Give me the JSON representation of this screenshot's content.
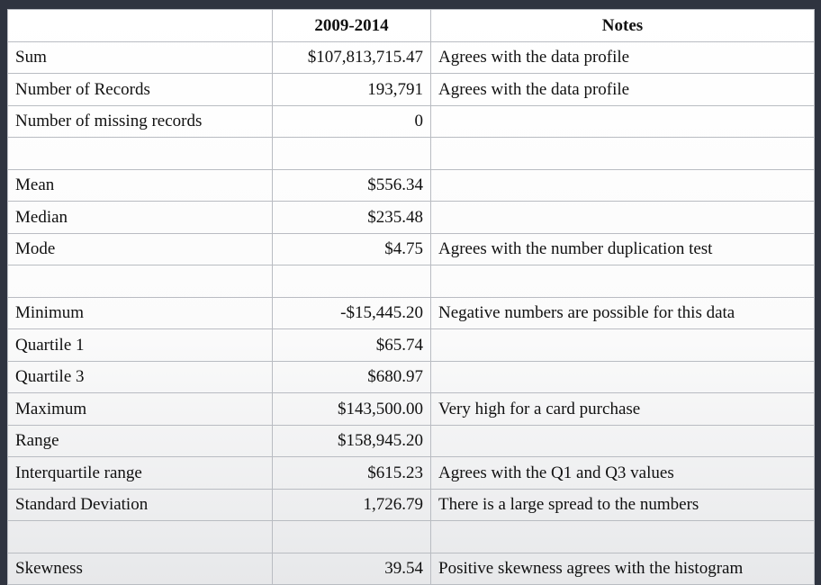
{
  "table": {
    "headers": [
      "",
      "2009-2014",
      "Notes"
    ],
    "rows": [
      {
        "label": "Sum",
        "value": "$107,813,715.47",
        "notes": "Agrees with the data profile"
      },
      {
        "label": "Number of Records",
        "value": "193,791",
        "notes": "Agrees with the data profile"
      },
      {
        "label": "Number of missing records",
        "value": "0",
        "notes": ""
      },
      {
        "label": "",
        "value": "",
        "notes": ""
      },
      {
        "label": "Mean",
        "value": "$556.34",
        "notes": ""
      },
      {
        "label": "Median",
        "value": "$235.48",
        "notes": ""
      },
      {
        "label": "Mode",
        "value": "$4.75",
        "notes": "Agrees with the number duplication test"
      },
      {
        "label": "",
        "value": "",
        "notes": ""
      },
      {
        "label": "Minimum",
        "value": "-$15,445.20",
        "notes": "Negative numbers are possible for this data"
      },
      {
        "label": "Quartile 1",
        "value": "$65.74",
        "notes": ""
      },
      {
        "label": "Quartile 3",
        "value": "$680.97",
        "notes": ""
      },
      {
        "label": "Maximum",
        "value": "$143,500.00",
        "notes": "Very high for a card purchase"
      },
      {
        "label": "Range",
        "value": "$158,945.20",
        "notes": ""
      },
      {
        "label": "Interquartile range",
        "value": "$615.23",
        "notes": "Agrees with the Q1 and Q3 values"
      },
      {
        "label": "Standard Deviation",
        "value": "1,726.79",
        "notes": "There is a large spread to the numbers"
      },
      {
        "label": "",
        "value": "",
        "notes": ""
      },
      {
        "label": "Skewness",
        "value": "39.54",
        "notes": "Positive skewness agrees with the histogram"
      }
    ]
  }
}
